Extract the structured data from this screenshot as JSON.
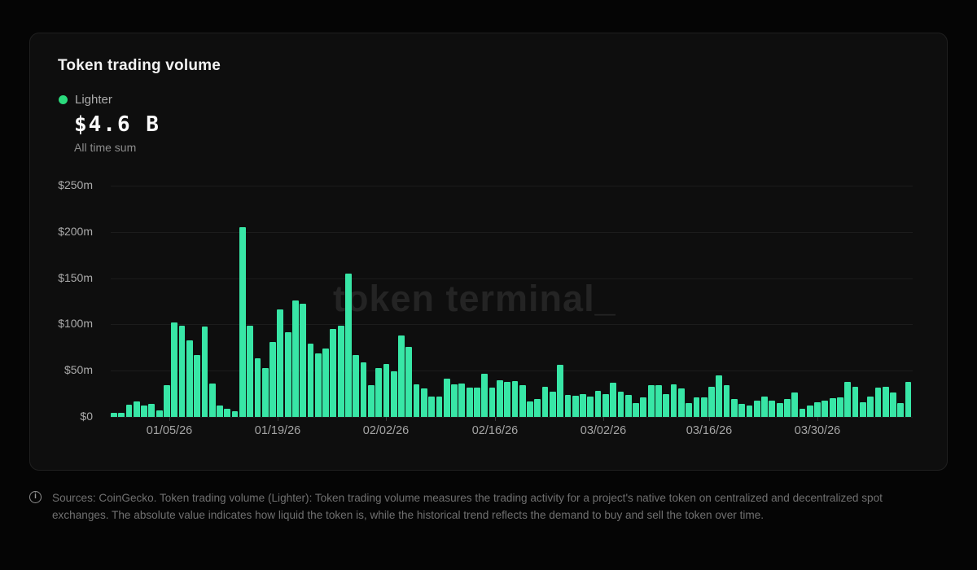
{
  "card": {
    "title": "Token trading volume",
    "legend": {
      "label": "Lighter",
      "dot_color": "#2BDB7D"
    },
    "kpi": {
      "value": "$4.6 B",
      "caption": "All time sum"
    },
    "watermark": "token terminal_"
  },
  "chart_data": {
    "type": "bar",
    "title": "Token trading volume",
    "series_name": "Lighter",
    "unit": "USD millions per day",
    "bar_color": "#38E6A6",
    "ylim": [
      0,
      250
    ],
    "grid": true,
    "legend_position": "top-left",
    "y_tick_labels": [
      "$250m",
      "$200m",
      "$150m",
      "$100m",
      "$50m",
      "$0"
    ],
    "x_tick_labels": [
      "01/05/26",
      "01/19/26",
      "02/02/26",
      "02/16/26",
      "03/02/26",
      "03/16/26",
      "03/30/26"
    ],
    "values": [
      4.5,
      4,
      13,
      17,
      12,
      14,
      7,
      34,
      102,
      99,
      83,
      67,
      98,
      36,
      12,
      9,
      6,
      205,
      99,
      63,
      53,
      81,
      116,
      92,
      126,
      122,
      79,
      69,
      74,
      95,
      99,
      155,
      67,
      59,
      34,
      53,
      57,
      49,
      88,
      76,
      35,
      31,
      22,
      22,
      41,
      35,
      36,
      32,
      32,
      47,
      32,
      40,
      38,
      39,
      34,
      17,
      19,
      33,
      27,
      56,
      24,
      23,
      25,
      22,
      28,
      25,
      37,
      27,
      24,
      15,
      21,
      34,
      34,
      25,
      35,
      31,
      15,
      21,
      21,
      33,
      45,
      34,
      19,
      14,
      12,
      18,
      22,
      18,
      15,
      19,
      26,
      9,
      12,
      16,
      18,
      20,
      21,
      38,
      33,
      16,
      22,
      32,
      33,
      26,
      15,
      38
    ]
  },
  "footer": {
    "icon_glyph": "i",
    "text": "Sources: CoinGecko. Token trading volume (Lighter): Token trading volume measures the trading activity for a project's native token on centralized and decentralized spot exchanges. The absolute value indicates how liquid the token is, while the historical trend reflects the demand to buy and sell the token over time."
  }
}
